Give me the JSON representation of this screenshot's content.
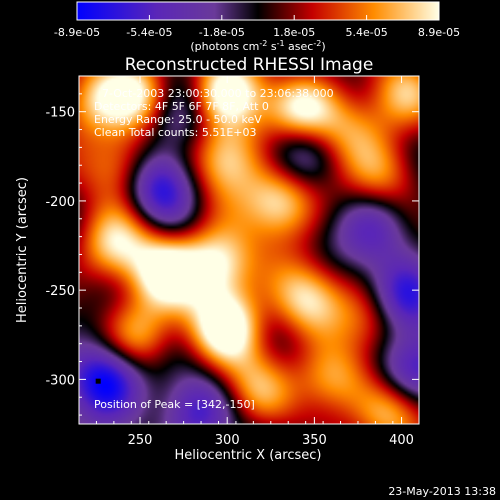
{
  "chart_data": {
    "type": "heatmap",
    "title": "Reconstructed RHESSI Image",
    "xlabel": "Heliocentric X (arcsec)",
    "ylabel": "Heliocentric Y (arcsec)",
    "xlim": [
      215,
      410
    ],
    "ylim": [
      -325,
      -130
    ],
    "xticks": [
      250,
      300,
      350,
      400
    ],
    "yticks": [
      -150,
      -200,
      -250,
      -300
    ],
    "colorbar": {
      "ticks": [
        "-8.9e-05",
        "-5.4e-05",
        "-1.8e-05",
        "1.8e-05",
        "5.4e-05",
        "8.9e-05"
      ],
      "range": [
        -8.9e-05,
        8.9e-05
      ],
      "unit_prefix": "(photons cm",
      "unit_exp1": "-2",
      "unit_mid": " s",
      "unit_exp2": "-1",
      "unit_mid2": " asec",
      "unit_exp3": "-2",
      "unit_suffix": ")"
    },
    "annotations": [
      "7-Oct-2003 23:00:30.000 to 23:06:38.000",
      "Detectors: 4F 5F 6F 7F 8F, Att 0",
      "Energy Range: 25.0 - 50.0 keV",
      "Clean     Total counts: 5.51E+03"
    ],
    "peak_label": "Position of Peak = [342,-150]",
    "peak": [
      342,
      -150
    ],
    "hot_spots": [
      {
        "x": 300,
        "y": -140,
        "v": 1.0
      },
      {
        "x": 342,
        "y": -150,
        "v": 1.0
      },
      {
        "x": 250,
        "y": -140,
        "v": 0.8
      },
      {
        "x": 222,
        "y": -145,
        "v": 0.7
      },
      {
        "x": 370,
        "y": -160,
        "v": 0.55
      },
      {
        "x": 400,
        "y": -140,
        "v": 0.6
      },
      {
        "x": 240,
        "y": -180,
        "v": 0.75
      },
      {
        "x": 300,
        "y": -175,
        "v": 0.85
      },
      {
        "x": 330,
        "y": -200,
        "v": 0.95
      },
      {
        "x": 390,
        "y": -185,
        "v": 0.55
      },
      {
        "x": 235,
        "y": -225,
        "v": 0.75
      },
      {
        "x": 265,
        "y": -240,
        "v": 0.9
      },
      {
        "x": 295,
        "y": -235,
        "v": 1.0
      },
      {
        "x": 300,
        "y": -270,
        "v": 1.0
      },
      {
        "x": 345,
        "y": -255,
        "v": 0.8
      },
      {
        "x": 250,
        "y": -275,
        "v": 0.7
      },
      {
        "x": 360,
        "y": -300,
        "v": 0.75
      },
      {
        "x": 315,
        "y": -305,
        "v": 0.55
      },
      {
        "x": 395,
        "y": -320,
        "v": 0.8
      },
      {
        "x": 385,
        "y": -265,
        "v": 0.6
      }
    ],
    "cold_spots": [
      {
        "x": 230,
        "y": -300,
        "v": -1.0
      },
      {
        "x": 260,
        "y": -190,
        "v": -0.8
      },
      {
        "x": 400,
        "y": -255,
        "v": -0.8
      },
      {
        "x": 405,
        "y": -295,
        "v": -0.75
      },
      {
        "x": 340,
        "y": -170,
        "v": -0.65
      },
      {
        "x": 280,
        "y": -320,
        "v": -0.6
      },
      {
        "x": 385,
        "y": -215,
        "v": -0.5
      },
      {
        "x": 270,
        "y": -155,
        "v": -0.5
      }
    ]
  },
  "footer": {
    "timestamp": "23-May-2013 13:38"
  },
  "colors": {
    "background": "#000000",
    "text": "#ffffff"
  }
}
